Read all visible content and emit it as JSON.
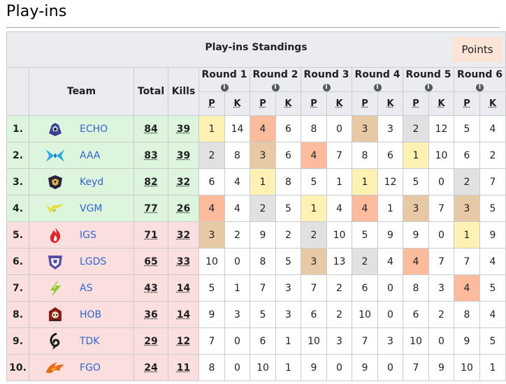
{
  "page": {
    "title": "Play-ins"
  },
  "table": {
    "caption": "Play-ins Standings",
    "points_button": "Points",
    "headers": {
      "team": "Team",
      "total": "Total",
      "kills": "Kills",
      "p": "P",
      "k": "K"
    },
    "rounds": [
      "Round 1",
      "Round 2",
      "Round 3",
      "Round 4",
      "Round 5",
      "Round 6"
    ],
    "info_glyph": "i",
    "highlight_colors": {
      "gold": "#fdf2b3",
      "silver": "#e1e1e1",
      "bronze": "#e8c9a5",
      "orange": "#fbbb9c",
      "qualified": "#ddf4dd",
      "eliminated": "#fbdfdf"
    },
    "rows": [
      {
        "rank": "1.",
        "team": "ECHO",
        "logo": "echo-logo-icon",
        "total": "84",
        "kills": "39",
        "status": "qualified",
        "results": [
          [
            "1",
            "14",
            "gold"
          ],
          [
            "4",
            "6",
            "orange"
          ],
          [
            "8",
            "0",
            ""
          ],
          [
            "3",
            "3",
            "bronze"
          ],
          [
            "2",
            "12",
            "silver"
          ],
          [
            "5",
            "4",
            ""
          ]
        ]
      },
      {
        "rank": "2.",
        "team": "AAA",
        "logo": "aaa-logo-icon",
        "total": "83",
        "kills": "39",
        "status": "qualified",
        "results": [
          [
            "2",
            "8",
            "silver"
          ],
          [
            "3",
            "6",
            "bronze"
          ],
          [
            "4",
            "7",
            "orange"
          ],
          [
            "8",
            "6",
            ""
          ],
          [
            "1",
            "10",
            "gold"
          ],
          [
            "6",
            "2",
            ""
          ]
        ]
      },
      {
        "rank": "3.",
        "team": "Keyd",
        "logo": "keyd-logo-icon",
        "total": "82",
        "kills": "32",
        "status": "qualified",
        "results": [
          [
            "6",
            "4",
            ""
          ],
          [
            "1",
            "8",
            "gold"
          ],
          [
            "5",
            "1",
            ""
          ],
          [
            "1",
            "12",
            "gold"
          ],
          [
            "5",
            "0",
            ""
          ],
          [
            "2",
            "7",
            "silver"
          ]
        ]
      },
      {
        "rank": "4.",
        "team": "VGM",
        "logo": "vgm-logo-icon",
        "total": "77",
        "kills": "26",
        "status": "qualified",
        "results": [
          [
            "4",
            "4",
            "orange"
          ],
          [
            "2",
            "5",
            "silver"
          ],
          [
            "1",
            "4",
            "gold"
          ],
          [
            "4",
            "1",
            "orange"
          ],
          [
            "3",
            "7",
            "bronze"
          ],
          [
            "3",
            "5",
            "bronze"
          ]
        ]
      },
      {
        "rank": "5.",
        "team": "IGS",
        "logo": "igs-logo-icon",
        "total": "71",
        "kills": "32",
        "status": "eliminated",
        "results": [
          [
            "3",
            "2",
            "bronze"
          ],
          [
            "9",
            "2",
            ""
          ],
          [
            "2",
            "10",
            "silver"
          ],
          [
            "5",
            "9",
            ""
          ],
          [
            "9",
            "0",
            ""
          ],
          [
            "1",
            "9",
            "gold"
          ]
        ]
      },
      {
        "rank": "6.",
        "team": "LGDS",
        "logo": "lgds-logo-icon",
        "total": "65",
        "kills": "33",
        "status": "eliminated",
        "results": [
          [
            "10",
            "0",
            ""
          ],
          [
            "8",
            "5",
            ""
          ],
          [
            "3",
            "13",
            "bronze"
          ],
          [
            "2",
            "4",
            "silver"
          ],
          [
            "4",
            "7",
            "orange"
          ],
          [
            "7",
            "4",
            ""
          ]
        ]
      },
      {
        "rank": "7.",
        "team": "AS",
        "logo": "as-logo-icon",
        "total": "43",
        "kills": "14",
        "status": "eliminated",
        "results": [
          [
            "5",
            "1",
            ""
          ],
          [
            "7",
            "3",
            ""
          ],
          [
            "7",
            "2",
            ""
          ],
          [
            "6",
            "0",
            ""
          ],
          [
            "8",
            "3",
            ""
          ],
          [
            "4",
            "5",
            "orange"
          ]
        ]
      },
      {
        "rank": "8.",
        "team": "HOB",
        "logo": "hob-logo-icon",
        "total": "36",
        "kills": "14",
        "status": "eliminated",
        "results": [
          [
            "9",
            "3",
            ""
          ],
          [
            "5",
            "3",
            ""
          ],
          [
            "6",
            "2",
            ""
          ],
          [
            "10",
            "0",
            ""
          ],
          [
            "6",
            "2",
            ""
          ],
          [
            "8",
            "4",
            ""
          ]
        ]
      },
      {
        "rank": "9.",
        "team": "TDK",
        "logo": "tdk-logo-icon",
        "total": "29",
        "kills": "12",
        "status": "eliminated",
        "results": [
          [
            "7",
            "0",
            ""
          ],
          [
            "6",
            "1",
            ""
          ],
          [
            "10",
            "3",
            ""
          ],
          [
            "7",
            "3",
            ""
          ],
          [
            "10",
            "0",
            ""
          ],
          [
            "9",
            "5",
            ""
          ]
        ]
      },
      {
        "rank": "10.",
        "team": "FGO",
        "logo": "fgo-logo-icon",
        "total": "24",
        "kills": "11",
        "status": "eliminated",
        "results": [
          [
            "8",
            "0",
            ""
          ],
          [
            "10",
            "1",
            ""
          ],
          [
            "9",
            "0",
            ""
          ],
          [
            "9",
            "0",
            ""
          ],
          [
            "7",
            "9",
            ""
          ],
          [
            "10",
            "1",
            ""
          ]
        ]
      }
    ]
  }
}
